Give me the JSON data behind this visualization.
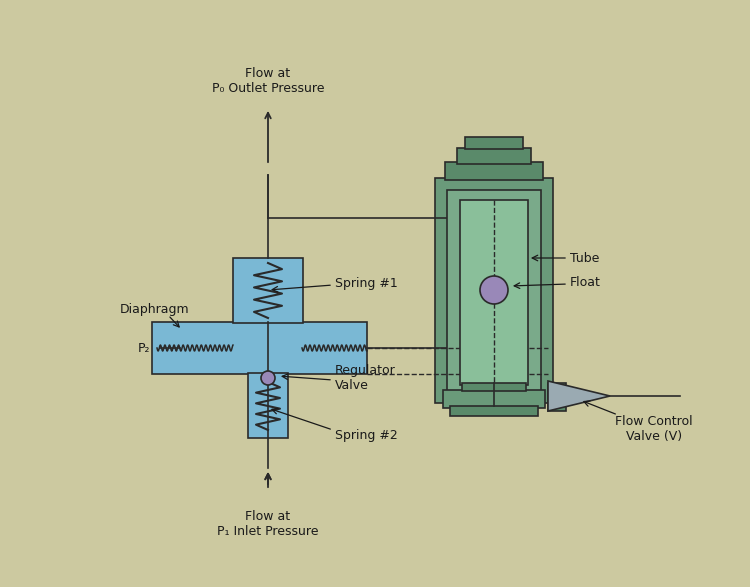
{
  "bg_color": "#ccc9a0",
  "blue_fill": "#7ab8d4",
  "blue_edge": "#4a8aaa",
  "green_outer": "#6a9a7a",
  "green_mid": "#7aaa8a",
  "green_inner": "#8abf9a",
  "green_top": "#5a8a6a",
  "gray_cone": "#9aaab2",
  "purple": "#9988b8",
  "line_color": "#2a2a2a",
  "text_color": "#1a1a1a",
  "labels": {
    "flow_outlet": "Flow at\nP₀ Outlet Pressure",
    "flow_inlet": "Flow at\nP₁ Inlet Pressure",
    "diaphragm": "Diaphragm",
    "p2": "P₂",
    "spring1": "Spring #1",
    "spring2": "Spring #2",
    "regulator": "Regulator\nValve",
    "tube": "Tube",
    "float": "Float",
    "flow_control": "Flow Control\nValve (V)"
  }
}
